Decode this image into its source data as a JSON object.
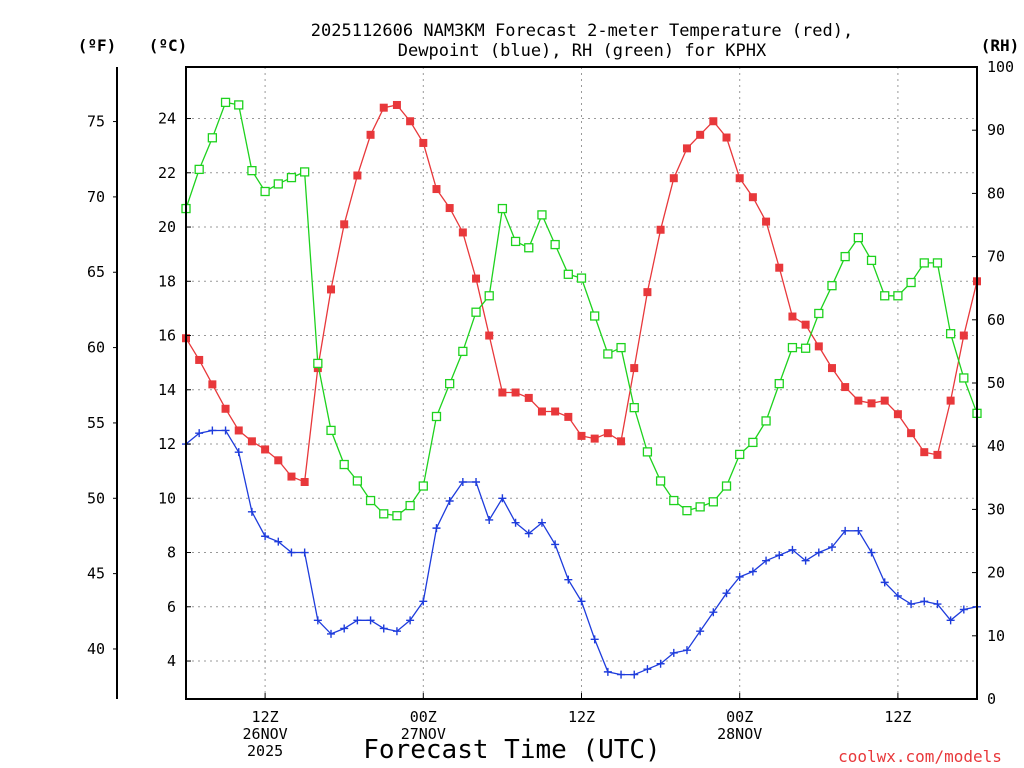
{
  "chart_data": {
    "type": "line",
    "title": [
      "2025112606 NAM3KM Forecast 2-meter Temperature (red),",
      "Dewpoint (blue), RH (green) for KPHX"
    ],
    "xlabel": "Forecast Time (UTC)",
    "credit": "coolwx.com/models",
    "units": {
      "fahrenheit": "(ºF)",
      "celsius": "(ºC)",
      "rh": "(RH)"
    },
    "x_range_hours": [
      0,
      60
    ],
    "x_ticks": [
      {
        "hour": 6,
        "lines": [
          "12Z",
          "26NOV",
          "2025"
        ]
      },
      {
        "hour": 18,
        "lines": [
          "00Z",
          "27NOV"
        ]
      },
      {
        "hour": 30,
        "lines": [
          "12Z"
        ]
      },
      {
        "hour": 42,
        "lines": [
          "00Z",
          "28NOV"
        ]
      },
      {
        "hour": 54,
        "lines": [
          "12Z"
        ]
      }
    ],
    "y_left_celsius": {
      "range": [
        2.6,
        25.9
      ],
      "ticks": [
        4,
        6,
        8,
        10,
        12,
        14,
        16,
        18,
        20,
        22,
        24
      ]
    },
    "y_left_fahrenheit": {
      "range": [
        36.68,
        78.62
      ],
      "ticks": [
        40,
        45,
        50,
        55,
        60,
        65,
        70,
        75
      ]
    },
    "y_right_rh": {
      "range": [
        0,
        100
      ],
      "ticks": [
        0,
        10,
        20,
        30,
        40,
        50,
        60,
        70,
        80,
        90,
        100
      ]
    },
    "series": [
      {
        "name": "Temperature",
        "color": "#e8383b",
        "marker": "filled-square",
        "axis": "celsius",
        "values": [
          15.9,
          15.1,
          14.2,
          13.3,
          12.5,
          12.1,
          11.8,
          11.4,
          10.8,
          10.6,
          14.8,
          17.7,
          20.1,
          21.9,
          23.4,
          24.4,
          24.5,
          23.9,
          23.1,
          21.4,
          20.7,
          19.8,
          18.1,
          16.0,
          13.9,
          13.9,
          13.7,
          13.2,
          13.2,
          13.0,
          12.3,
          12.2,
          12.4,
          12.1,
          14.8,
          17.6,
          19.9,
          21.8,
          22.9,
          23.4,
          23.9,
          23.3,
          21.8,
          21.1,
          20.2,
          18.5,
          16.7,
          16.4,
          15.6,
          14.8,
          14.1,
          13.6,
          13.5,
          13.6,
          13.1,
          12.4,
          11.7,
          11.6,
          13.6,
          16.0,
          18.0
        ]
      },
      {
        "name": "Dewpoint",
        "color": "#1e3cdc",
        "marker": "plus",
        "axis": "celsius",
        "values": [
          12.0,
          12.4,
          12.5,
          12.5,
          11.7,
          9.5,
          8.6,
          8.4,
          8.0,
          8.0,
          5.5,
          5.0,
          5.2,
          5.5,
          5.5,
          5.2,
          5.1,
          5.5,
          6.2,
          8.9,
          9.9,
          10.6,
          10.6,
          9.2,
          10.0,
          9.1,
          8.7,
          9.1,
          8.3,
          7.0,
          6.2,
          4.8,
          3.6,
          3.5,
          3.5,
          3.7,
          3.9,
          4.3,
          4.4,
          5.1,
          5.8,
          6.5,
          7.1,
          7.3,
          7.7,
          7.9,
          8.1,
          7.7,
          8.0,
          8.2,
          8.8,
          8.8,
          8.0,
          6.9,
          6.4,
          6.1,
          6.2,
          6.1,
          5.5,
          5.9,
          6.0
        ]
      },
      {
        "name": "RH",
        "color": "#1ed21e",
        "marker": "hollow-square",
        "axis": "rh",
        "values": [
          77.6,
          83.8,
          88.8,
          94.4,
          94.0,
          83.6,
          80.3,
          81.5,
          82.5,
          83.4,
          53.1,
          42.5,
          37.1,
          34.5,
          31.4,
          29.3,
          29.0,
          30.6,
          33.7,
          44.7,
          49.9,
          55.0,
          61.2,
          63.8,
          77.6,
          72.4,
          71.4,
          76.6,
          71.9,
          67.2,
          66.6,
          60.6,
          54.6,
          55.6,
          46.1,
          39.1,
          34.5,
          31.4,
          29.8,
          30.4,
          31.2,
          33.7,
          38.7,
          40.6,
          44.0,
          49.9,
          55.6,
          55.5,
          61.0,
          65.4,
          70.0,
          73.0,
          69.4,
          63.8,
          63.8,
          65.9,
          69.0,
          69.0,
          57.8,
          50.8,
          45.2
        ]
      }
    ]
  }
}
